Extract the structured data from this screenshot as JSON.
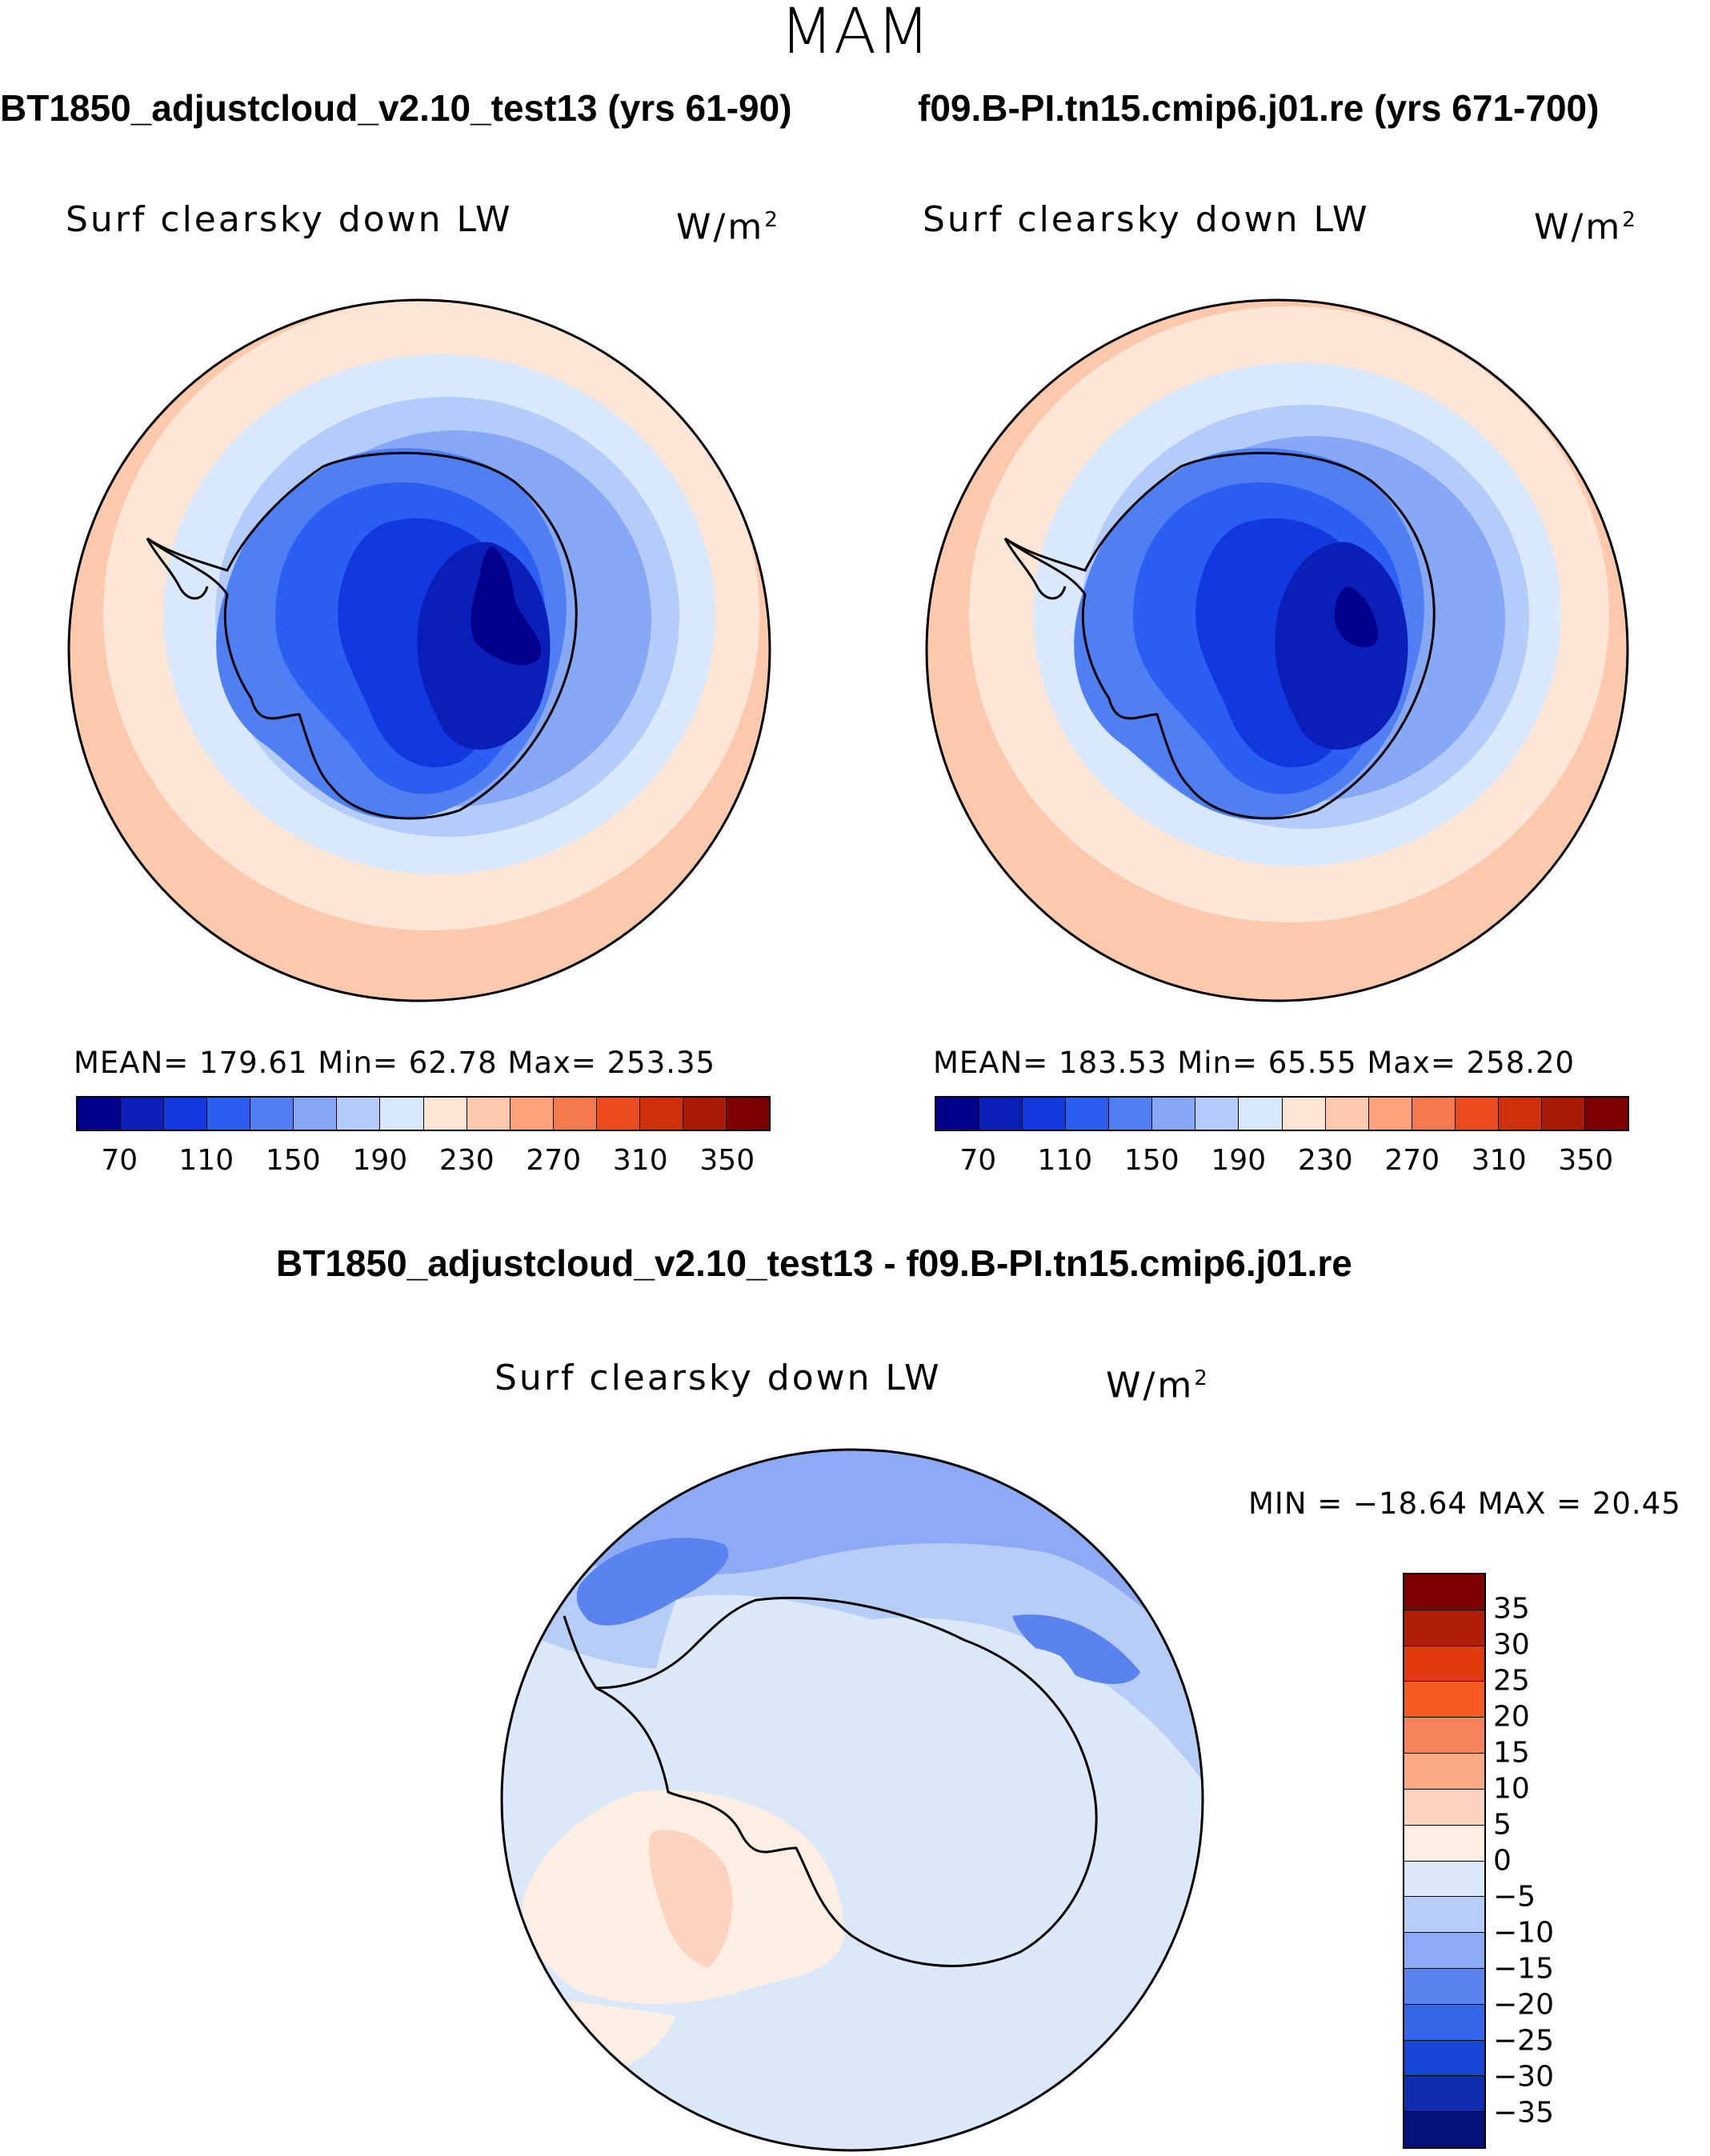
{
  "season": "MAM",
  "panels": [
    {
      "case_title": "BT1850_adjustcloud_v2.10_test13 (yrs 61-90)",
      "variable": "Surf clearsky down LW",
      "units": "W/m",
      "units_exp": "2",
      "stats": "MEAN= 179.61   Min=   62.78   Max= 253.35",
      "stats_values": {
        "mean": 179.61,
        "min": 62.78,
        "max": 253.35
      }
    },
    {
      "case_title": "f09.B-PI.tn15.cmip6.j01.re (yrs 671-700)",
      "variable": "Surf clearsky down LW",
      "units": "W/m",
      "units_exp": "2",
      "stats": "MEAN= 183.53   Min=   65.55   Max= 258.20",
      "stats_values": {
        "mean": 183.53,
        "min": 65.55,
        "max": 258.2
      }
    }
  ],
  "diff_panel": {
    "case_title": "BT1850_adjustcloud_v2.10_test13 - f09.B-PI.tn15.cmip6.j01.re",
    "variable": "Surf clearsky down LW",
    "units": "W/m",
    "units_exp": "2",
    "stats": "MIN = −18.64 MAX =   20.45",
    "stats_values": {
      "min": -18.64,
      "max": 20.45
    }
  },
  "abs_colorbar": {
    "colors": [
      "#00008b",
      "#0a1fb8",
      "#1238e0",
      "#2c5ef2",
      "#4f7ff2",
      "#86a8f5",
      "#b4ccf9",
      "#d9e8fb",
      "#fde6d6",
      "#fcc9ad",
      "#f9a27c",
      "#f47a4e",
      "#ec4a1f",
      "#d0300c",
      "#a91a07",
      "#7c0000"
    ],
    "tick_labels": [
      "70",
      "110",
      "150",
      "190",
      "230",
      "270",
      "310",
      "350"
    ]
  },
  "diff_colorbar": {
    "colors": [
      "#7c0000",
      "#b01e06",
      "#e03a0d",
      "#f65a20",
      "#f7835a",
      "#f9aa85",
      "#fcd3bc",
      "#fdeee3",
      "#dbe8fa",
      "#b6cdf8",
      "#8eaaf4",
      "#5b83ef",
      "#3466e8",
      "#1a46d8",
      "#0d2cb0",
      "#05117a"
    ],
    "tick_labels": [
      "35",
      "30",
      "25",
      "20",
      "15",
      "10",
      "5",
      "0",
      "−5",
      "−10",
      "−15",
      "−20",
      "−25",
      "−30",
      "−35"
    ]
  },
  "chart_data": [
    {
      "type": "heatmap",
      "title": "BT1850_adjustcloud_v2.10_test13 (yrs 61-90)",
      "projection": "south polar stereographic",
      "variable": "Surf clearsky down LW",
      "units": "W/m2",
      "levels": [
        70,
        90,
        110,
        130,
        150,
        170,
        190,
        210,
        230,
        250,
        270,
        290,
        310,
        330,
        350
      ],
      "mean": 179.61,
      "min": 62.78,
      "max": 253.35
    },
    {
      "type": "heatmap",
      "title": "f09.B-PI.tn15.cmip6.j01.re (yrs 671-700)",
      "projection": "south polar stereographic",
      "variable": "Surf clearsky down LW",
      "units": "W/m2",
      "levels": [
        70,
        90,
        110,
        130,
        150,
        170,
        190,
        210,
        230,
        250,
        270,
        290,
        310,
        330,
        350
      ],
      "mean": 183.53,
      "min": 65.55,
      "max": 258.2
    },
    {
      "type": "heatmap",
      "title": "BT1850_adjustcloud_v2.10_test13 - f09.B-PI.tn15.cmip6.j01.re",
      "projection": "south polar stereographic",
      "variable": "Surf clearsky down LW",
      "units": "W/m2",
      "levels": [
        -35,
        -30,
        -25,
        -20,
        -15,
        -10,
        -5,
        0,
        5,
        10,
        15,
        20,
        25,
        30,
        35
      ],
      "min": -18.64,
      "max": 20.45
    }
  ]
}
